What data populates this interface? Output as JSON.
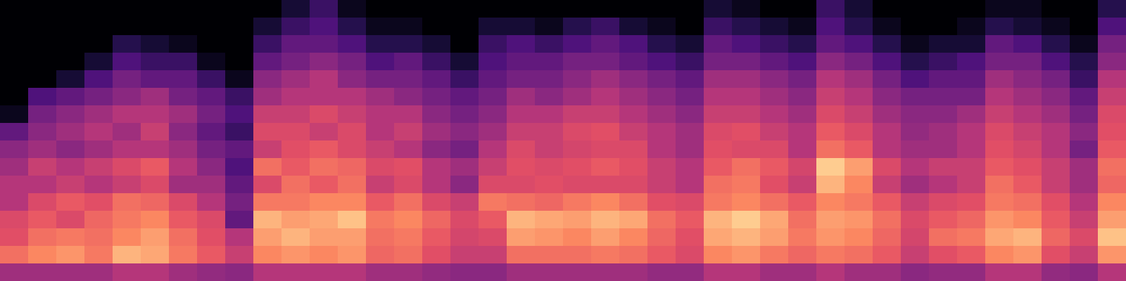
{
  "chart_data": {
    "type": "heatmap",
    "color": "magma",
    "tick_labels": false,
    "zlim": [
      0,
      1
    ],
    "cells": [
      [
        0,
        0,
        0,
        0,
        0,
        0,
        0.05,
        0.3,
        0.4,
        0.45,
        0.5,
        0.5,
        0.6,
        0.62,
        0.7,
        0.45
      ],
      [
        0,
        0,
        0,
        0,
        0,
        0.25,
        0.35,
        0.4,
        0.45,
        0.55,
        0.5,
        0.6,
        0.65,
        0.7,
        0.75,
        0.45
      ],
      [
        0,
        0,
        0,
        0,
        0.1,
        0.3,
        0.4,
        0.45,
        0.4,
        0.5,
        0.55,
        0.65,
        0.6,
        0.72,
        0.78,
        0.45
      ],
      [
        0,
        0,
        0,
        0.1,
        0.25,
        0.35,
        0.45,
        0.5,
        0.45,
        0.55,
        0.5,
        0.62,
        0.68,
        0.7,
        0.72,
        0.45
      ],
      [
        0,
        0,
        0.15,
        0.25,
        0.35,
        0.4,
        0.5,
        0.45,
        0.5,
        0.6,
        0.55,
        0.7,
        0.72,
        0.75,
        0.85,
        0.5
      ],
      [
        0,
        0,
        0.1,
        0.2,
        0.3,
        0.45,
        0.5,
        0.55,
        0.5,
        0.65,
        0.6,
        0.68,
        0.75,
        0.8,
        0.82,
        0.5
      ],
      [
        0,
        0,
        0.05,
        0.2,
        0.3,
        0.35,
        0.45,
        0.4,
        0.45,
        0.5,
        0.45,
        0.6,
        0.65,
        0.7,
        0.72,
        0.45
      ],
      [
        0,
        0,
        0,
        0.05,
        0.2,
        0.3,
        0.35,
        0.3,
        0.35,
        0.4,
        0.45,
        0.5,
        0.6,
        0.62,
        0.65,
        0.42
      ],
      [
        0,
        0,
        0,
        0,
        0.05,
        0.2,
        0.25,
        0.2,
        0.3,
        0.25,
        0.3,
        0.35,
        0.3,
        0.5,
        0.55,
        0.4
      ],
      [
        0,
        0.1,
        0.2,
        0.3,
        0.4,
        0.45,
        0.55,
        0.6,
        0.55,
        0.7,
        0.6,
        0.72,
        0.85,
        0.8,
        0.75,
        0.5
      ],
      [
        0.1,
        0.2,
        0.3,
        0.35,
        0.45,
        0.5,
        0.55,
        0.6,
        0.62,
        0.65,
        0.7,
        0.72,
        0.8,
        0.85,
        0.78,
        0.5
      ],
      [
        0.2,
        0.25,
        0.3,
        0.4,
        0.5,
        0.5,
        0.6,
        0.55,
        0.65,
        0.7,
        0.65,
        0.75,
        0.82,
        0.8,
        0.75,
        0.5
      ],
      [
        0.05,
        0.15,
        0.25,
        0.35,
        0.4,
        0.5,
        0.55,
        0.6,
        0.6,
        0.68,
        0.7,
        0.75,
        0.88,
        0.8,
        0.78,
        0.5
      ],
      [
        0,
        0.05,
        0.15,
        0.25,
        0.35,
        0.45,
        0.5,
        0.5,
        0.55,
        0.6,
        0.55,
        0.65,
        0.72,
        0.7,
        0.68,
        0.45
      ],
      [
        0,
        0.05,
        0.15,
        0.3,
        0.35,
        0.4,
        0.5,
        0.55,
        0.5,
        0.62,
        0.6,
        0.7,
        0.75,
        0.72,
        0.7,
        0.45
      ],
      [
        0,
        0,
        0.1,
        0.2,
        0.3,
        0.35,
        0.4,
        0.45,
        0.4,
        0.5,
        0.5,
        0.6,
        0.68,
        0.65,
        0.62,
        0.42
      ],
      [
        0,
        0,
        0,
        0.1,
        0.2,
        0.3,
        0.35,
        0.4,
        0.35,
        0.45,
        0.4,
        0.55,
        0.6,
        0.58,
        0.55,
        0.4
      ],
      [
        0,
        0.1,
        0.2,
        0.25,
        0.3,
        0.35,
        0.4,
        0.45,
        0.5,
        0.55,
        0.6,
        0.72,
        0.65,
        0.6,
        0.55,
        0.4
      ],
      [
        0,
        0.1,
        0.25,
        0.3,
        0.35,
        0.45,
        0.5,
        0.55,
        0.6,
        0.62,
        0.6,
        0.7,
        0.85,
        0.8,
        0.7,
        0.45
      ],
      [
        0,
        0.05,
        0.2,
        0.3,
        0.35,
        0.4,
        0.5,
        0.55,
        0.55,
        0.6,
        0.62,
        0.68,
        0.82,
        0.78,
        0.7,
        0.45
      ],
      [
        0,
        0.15,
        0.25,
        0.35,
        0.4,
        0.45,
        0.55,
        0.6,
        0.58,
        0.62,
        0.6,
        0.72,
        0.8,
        0.75,
        0.7,
        0.45
      ],
      [
        0,
        0.2,
        0.3,
        0.35,
        0.45,
        0.5,
        0.55,
        0.62,
        0.6,
        0.65,
        0.6,
        0.75,
        0.85,
        0.8,
        0.72,
        0.45
      ],
      [
        0,
        0.1,
        0.25,
        0.3,
        0.4,
        0.45,
        0.5,
        0.55,
        0.6,
        0.62,
        0.6,
        0.7,
        0.82,
        0.75,
        0.7,
        0.45
      ],
      [
        0,
        0.05,
        0.15,
        0.25,
        0.35,
        0.4,
        0.45,
        0.5,
        0.5,
        0.55,
        0.55,
        0.62,
        0.7,
        0.68,
        0.65,
        0.42
      ],
      [
        0,
        0,
        0.1,
        0.2,
        0.3,
        0.35,
        0.4,
        0.45,
        0.45,
        0.5,
        0.5,
        0.6,
        0.65,
        0.62,
        0.6,
        0.42
      ],
      [
        0.1,
        0.2,
        0.3,
        0.35,
        0.45,
        0.5,
        0.55,
        0.6,
        0.62,
        0.65,
        0.7,
        0.72,
        0.85,
        0.82,
        0.75,
        0.5
      ],
      [
        0.05,
        0.15,
        0.25,
        0.35,
        0.45,
        0.5,
        0.55,
        0.62,
        0.6,
        0.7,
        0.72,
        0.75,
        0.9,
        0.85,
        0.78,
        0.5
      ],
      [
        0,
        0.1,
        0.2,
        0.3,
        0.4,
        0.45,
        0.5,
        0.55,
        0.6,
        0.65,
        0.62,
        0.7,
        0.82,
        0.8,
        0.72,
        0.45
      ],
      [
        0,
        0.05,
        0.15,
        0.25,
        0.35,
        0.4,
        0.45,
        0.5,
        0.5,
        0.58,
        0.55,
        0.65,
        0.7,
        0.72,
        0.68,
        0.45
      ],
      [
        0.2,
        0.25,
        0.3,
        0.4,
        0.5,
        0.55,
        0.6,
        0.65,
        0.7,
        0.9,
        0.85,
        0.75,
        0.8,
        0.78,
        0.72,
        0.5
      ],
      [
        0.1,
        0.15,
        0.25,
        0.35,
        0.45,
        0.5,
        0.55,
        0.6,
        0.65,
        0.8,
        0.75,
        0.72,
        0.78,
        0.75,
        0.7,
        0.45
      ],
      [
        0,
        0.05,
        0.15,
        0.25,
        0.35,
        0.4,
        0.45,
        0.5,
        0.5,
        0.6,
        0.55,
        0.65,
        0.7,
        0.68,
        0.65,
        0.45
      ],
      [
        0,
        0,
        0.05,
        0.15,
        0.25,
        0.35,
        0.4,
        0.42,
        0.45,
        0.5,
        0.45,
        0.55,
        0.6,
        0.58,
        0.55,
        0.4
      ],
      [
        0,
        0,
        0.1,
        0.2,
        0.3,
        0.35,
        0.4,
        0.45,
        0.45,
        0.55,
        0.5,
        0.6,
        0.65,
        0.7,
        0.62,
        0.42
      ],
      [
        0,
        0.05,
        0.1,
        0.25,
        0.3,
        0.35,
        0.45,
        0.5,
        0.5,
        0.55,
        0.55,
        0.62,
        0.68,
        0.72,
        0.65,
        0.42
      ],
      [
        0.05,
        0.15,
        0.3,
        0.35,
        0.45,
        0.5,
        0.55,
        0.6,
        0.62,
        0.65,
        0.7,
        0.72,
        0.78,
        0.82,
        0.75,
        0.5
      ],
      [
        0.05,
        0.1,
        0.25,
        0.35,
        0.4,
        0.45,
        0.5,
        0.55,
        0.58,
        0.62,
        0.65,
        0.7,
        0.75,
        0.85,
        0.78,
        0.5
      ],
      [
        0,
        0.05,
        0.15,
        0.25,
        0.35,
        0.4,
        0.45,
        0.5,
        0.5,
        0.55,
        0.55,
        0.62,
        0.65,
        0.68,
        0.62,
        0.42
      ],
      [
        0,
        0,
        0.05,
        0.15,
        0.2,
        0.3,
        0.35,
        0.4,
        0.35,
        0.45,
        0.45,
        0.5,
        0.55,
        0.6,
        0.55,
        0.4
      ],
      [
        0.15,
        0.25,
        0.35,
        0.4,
        0.5,
        0.55,
        0.6,
        0.62,
        0.65,
        0.7,
        0.68,
        0.75,
        0.8,
        0.88,
        0.78,
        0.5
      ]
    ]
  }
}
